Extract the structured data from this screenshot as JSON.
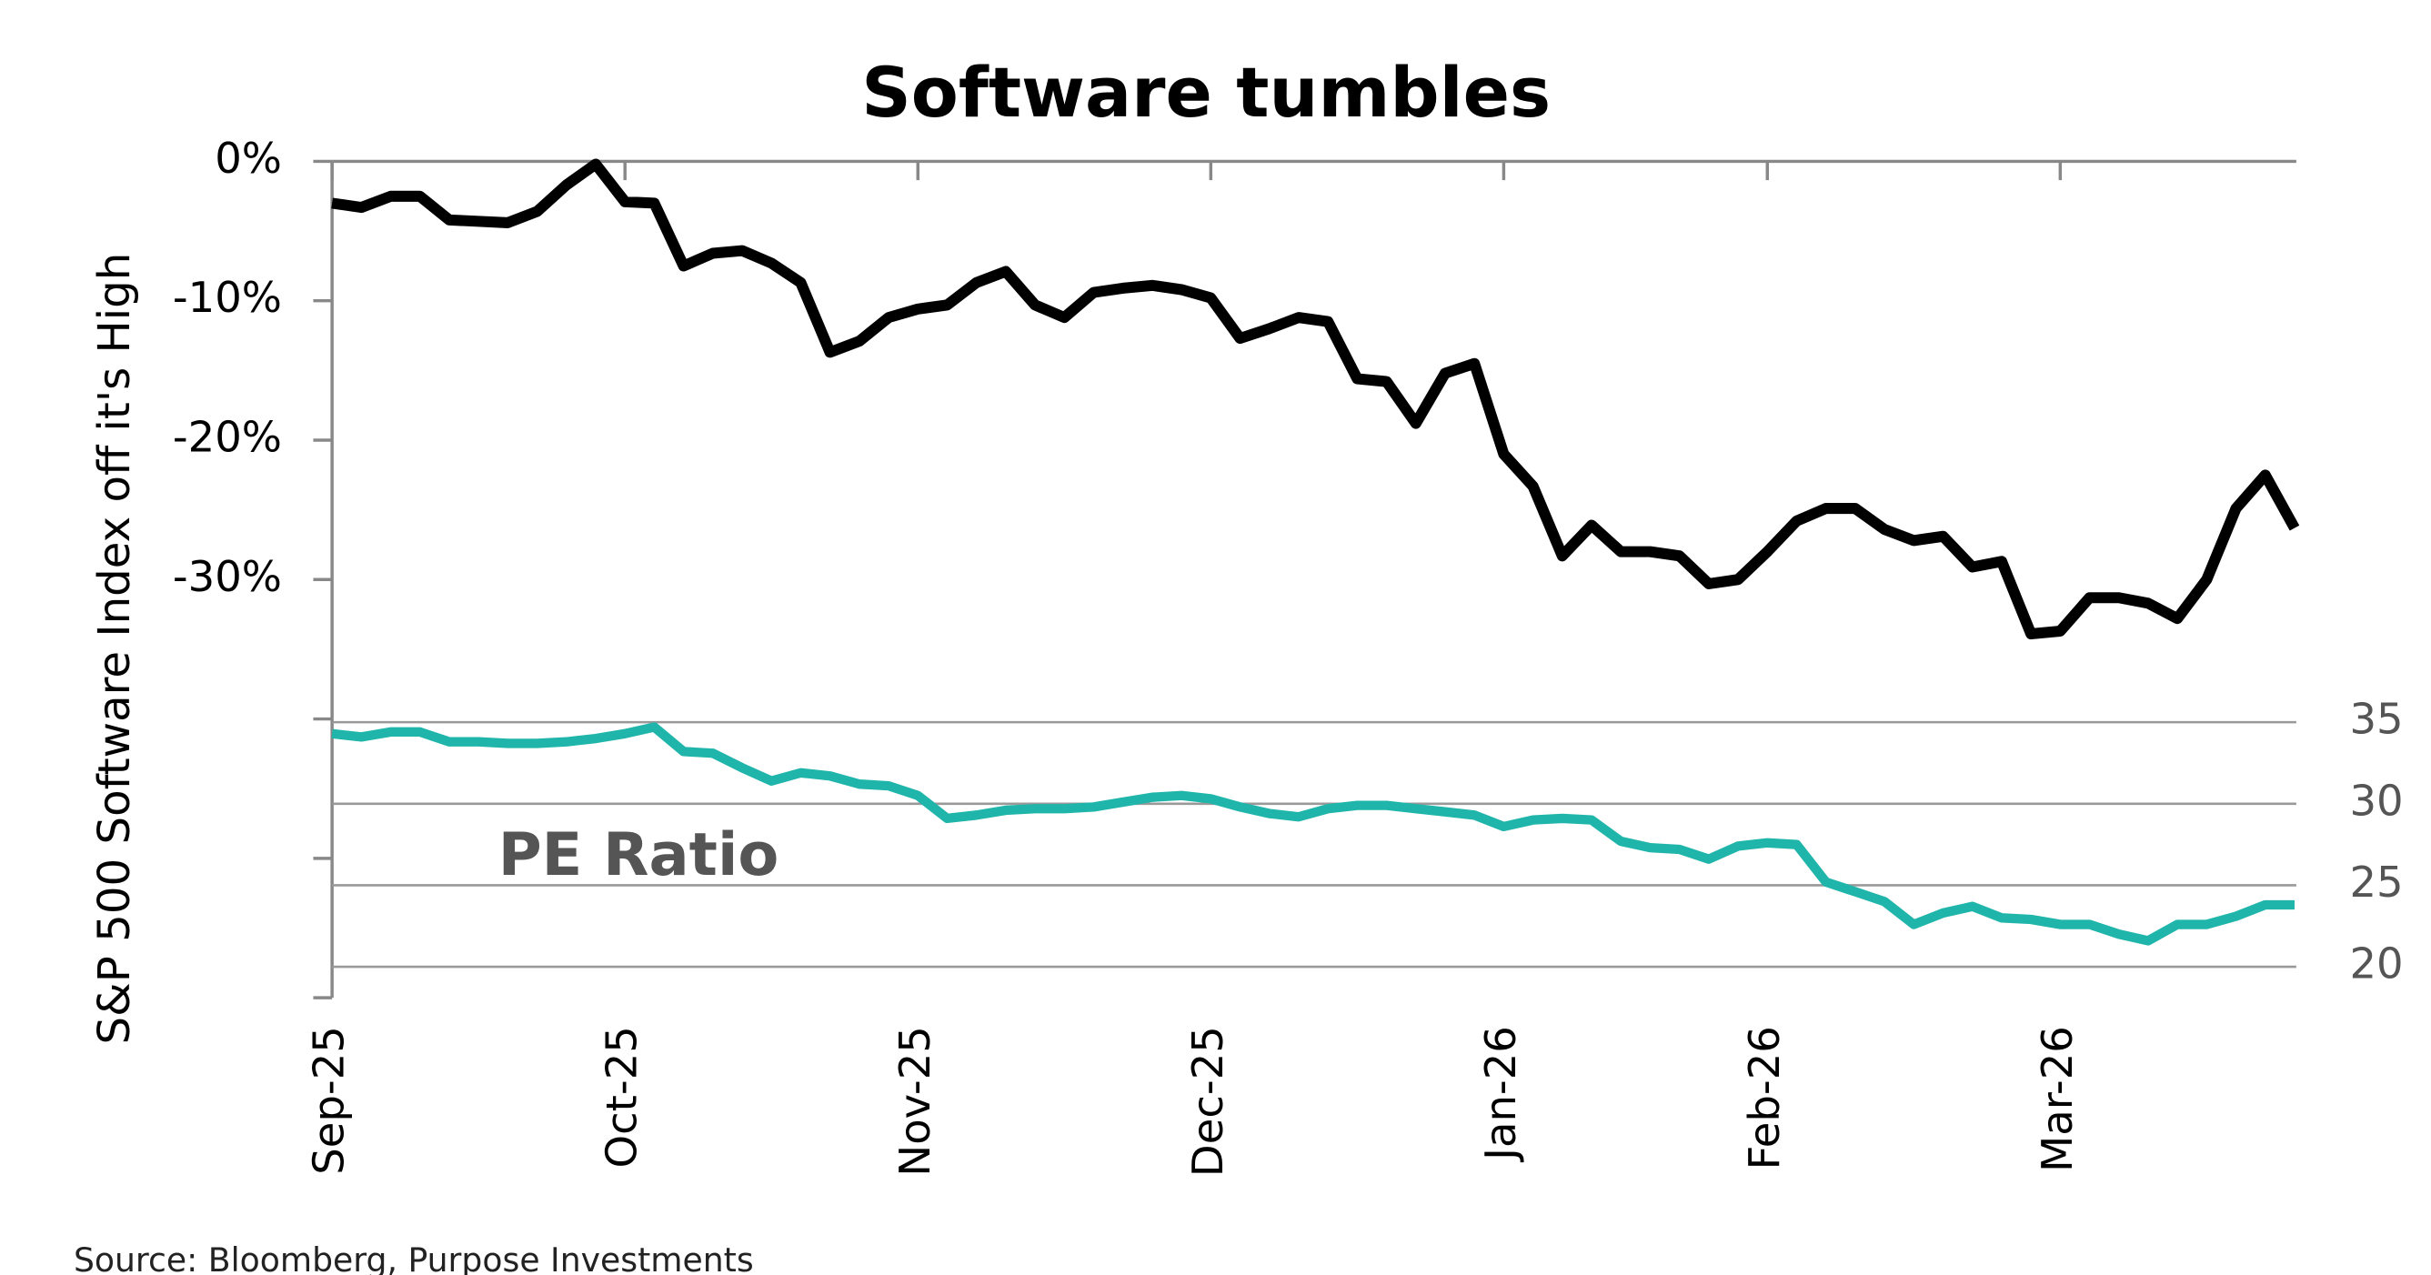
{
  "chart_data": {
    "type": "line",
    "title": "Software tumbles",
    "y_label": "S&P 500 Software Index off it's High",
    "source": "Source: Bloomberg, Purpose Investments",
    "categories": [
      "Sep-25",
      null,
      null,
      null,
      null,
      null,
      null,
      null,
      null,
      null,
      "Oct-25",
      null,
      null,
      null,
      null,
      null,
      null,
      null,
      null,
      null,
      "Nov-25",
      null,
      null,
      null,
      null,
      null,
      null,
      null,
      null,
      null,
      "Dec-25",
      null,
      null,
      null,
      null,
      null,
      null,
      null,
      null,
      null,
      "Jan-26",
      null,
      null,
      null,
      null,
      null,
      null,
      null,
      null,
      "Feb-26",
      null,
      null,
      null,
      null,
      null,
      null,
      null,
      null,
      null,
      "Mar-26",
      null,
      null,
      null,
      null,
      null,
      null,
      null,
      null
    ],
    "series": [
      {
        "color": "#000000",
        "values": [
          -3.0,
          -3.3,
          -2.5,
          -2.5,
          -4.2,
          -4.3,
          -4.4,
          -3.6,
          -1.7,
          -0.2,
          -2.9,
          -3.0,
          -7.5,
          -6.6,
          -6.4,
          -7.3,
          -8.7,
          -13.7,
          -12.9,
          -11.2,
          -10.6,
          -10.3,
          -8.7,
          -7.9,
          -10.3,
          -11.2,
          -9.4,
          -9.1,
          -8.9,
          -9.2,
          -9.8,
          -12.7,
          -12.0,
          -11.2,
          -11.5,
          -15.6,
          -15.8,
          -18.8,
          -15.2,
          -14.5,
          -21.0,
          -23.3,
          -28.3,
          -26.1,
          -28.0,
          -28.0,
          -28.3,
          -30.3,
          -30.0,
          -28.0,
          -25.8,
          -24.9,
          -24.9,
          -26.4,
          -27.2,
          -26.9,
          -29.1,
          -28.7,
          -33.9,
          -33.7,
          -31.3,
          -31.3,
          -31.7,
          -32.8,
          -30.0,
          -24.9,
          -22.5,
          -26.3
        ]
      },
      {
        "name": "PE Ratio",
        "color": "#1fb5aa",
        "axis": "y2",
        "values": [
          34.3,
          34.1,
          34.4,
          34.4,
          33.8,
          33.8,
          33.7,
          33.7,
          33.8,
          34.0,
          34.3,
          34.7,
          33.2,
          33.1,
          32.2,
          31.4,
          31.9,
          31.7,
          31.2,
          31.1,
          30.5,
          29.1,
          29.3,
          29.6,
          29.7,
          29.7,
          29.8,
          30.1,
          30.4,
          30.5,
          30.3,
          29.8,
          29.4,
          29.2,
          29.7,
          29.9,
          29.9,
          29.7,
          29.5,
          29.3,
          28.6,
          29.0,
          29.1,
          29.0,
          27.7,
          27.3,
          27.2,
          26.6,
          27.4,
          27.6,
          27.5,
          25.2,
          24.6,
          24.0,
          22.6,
          23.3,
          23.7,
          23.0,
          22.9,
          22.6,
          22.6,
          22.0,
          21.6,
          22.6,
          22.6,
          23.1,
          23.8,
          23.8
        ]
      }
    ],
    "ylim": [
      -60,
      0
    ],
    "yticks": [
      {
        "value": 0,
        "label": "0%"
      },
      {
        "value": -10,
        "label": "-10%"
      },
      {
        "value": -20,
        "label": "-20%"
      },
      {
        "value": -30,
        "label": "-30%"
      },
      {
        "value": -40,
        "label": null
      },
      {
        "value": -50,
        "label": null
      },
      {
        "value": -60,
        "label": null
      }
    ],
    "y2lim": [
      18.1,
      69.4
    ],
    "y2ticks": [
      35,
      30,
      25,
      20
    ],
    "y2grid": true
  }
}
